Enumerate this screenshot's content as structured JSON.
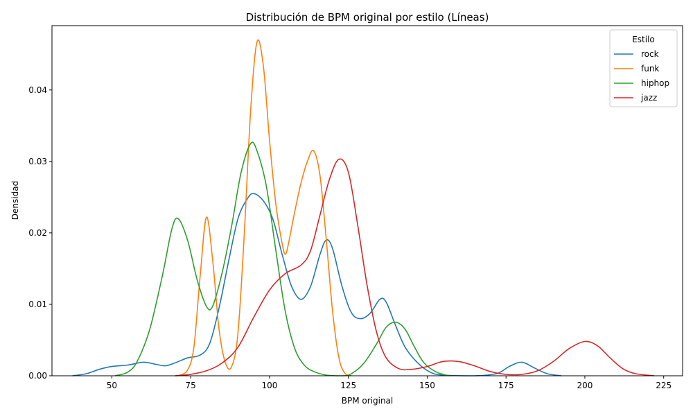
{
  "chart_data": {
    "type": "line",
    "title": "Distribución de BPM original por estilo (Líneas)",
    "xlabel": "BPM original",
    "ylabel": "Densidad",
    "xlim": [
      31,
      231
    ],
    "ylim": [
      0,
      0.049
    ],
    "xticks": [
      50,
      75,
      100,
      125,
      150,
      175,
      200,
      225
    ],
    "yticks": [
      0.0,
      0.01,
      0.02,
      0.03,
      0.04
    ],
    "xtick_labels": [
      "50",
      "75",
      "100",
      "125",
      "150",
      "175",
      "200",
      "225"
    ],
    "ytick_labels": [
      "0.00",
      "0.01",
      "0.02",
      "0.03",
      "0.04"
    ],
    "grid": false,
    "legend": {
      "title": "Estilo",
      "placement": "top-right"
    },
    "series": [
      {
        "name": "rock",
        "color": "#1f77b4",
        "points": [
          [
            37.5,
            0
          ],
          [
            42,
            0.0003
          ],
          [
            46,
            0.0009
          ],
          [
            50,
            0.0013
          ],
          [
            55,
            0.0015
          ],
          [
            60,
            0.0019
          ],
          [
            64,
            0.0016
          ],
          [
            67,
            0.0014
          ],
          [
            70,
            0.0018
          ],
          [
            74,
            0.0025
          ],
          [
            78,
            0.0029
          ],
          [
            81,
            0.0045
          ],
          [
            84,
            0.0095
          ],
          [
            87,
            0.016
          ],
          [
            90,
            0.022
          ],
          [
            93,
            0.0248
          ],
          [
            95,
            0.0255
          ],
          [
            98,
            0.0245
          ],
          [
            101,
            0.022
          ],
          [
            104,
            0.017
          ],
          [
            107,
            0.0125
          ],
          [
            110,
            0.0107
          ],
          [
            113,
            0.0125
          ],
          [
            116,
            0.017
          ],
          [
            118,
            0.019
          ],
          [
            120,
            0.0178
          ],
          [
            123,
            0.0125
          ],
          [
            126,
            0.0088
          ],
          [
            129,
            0.008
          ],
          [
            132,
            0.0088
          ],
          [
            135,
            0.0107
          ],
          [
            137,
            0.0103
          ],
          [
            140,
            0.007
          ],
          [
            143,
            0.004
          ],
          [
            147,
            0.0018
          ],
          [
            151,
            0.0005
          ],
          [
            155,
            0.0001
          ],
          [
            165,
            0
          ],
          [
            172,
            0.0003
          ],
          [
            176,
            0.0013
          ],
          [
            180,
            0.0019
          ],
          [
            184,
            0.0011
          ],
          [
            188,
            0.0003
          ],
          [
            192.5,
            0
          ]
        ]
      },
      {
        "name": "funk",
        "color": "#ff7f0e",
        "points": [
          [
            71,
            0
          ],
          [
            74,
            0.0008
          ],
          [
            76,
            0.004
          ],
          [
            78,
            0.014
          ],
          [
            80,
            0.0222
          ],
          [
            82,
            0.016
          ],
          [
            84,
            0.0065
          ],
          [
            86,
            0.0018
          ],
          [
            88,
            0.0013
          ],
          [
            90,
            0.006
          ],
          [
            92,
            0.02
          ],
          [
            94,
            0.037
          ],
          [
            96,
            0.0467
          ],
          [
            98,
            0.0435
          ],
          [
            100,
            0.033
          ],
          [
            102,
            0.024
          ],
          [
            104,
            0.0185
          ],
          [
            105,
            0.017
          ],
          [
            106,
            0.0185
          ],
          [
            108,
            0.023
          ],
          [
            110,
            0.027
          ],
          [
            112,
            0.03
          ],
          [
            114,
            0.0315
          ],
          [
            116,
            0.028
          ],
          [
            118,
            0.019
          ],
          [
            120,
            0.009
          ],
          [
            122,
            0.0025
          ],
          [
            124,
            0.0003
          ],
          [
            126,
            0
          ]
        ]
      },
      {
        "name": "hiphop",
        "color": "#2ca02c",
        "points": [
          [
            51,
            0
          ],
          [
            55,
            0.0005
          ],
          [
            58,
            0.002
          ],
          [
            62,
            0.0065
          ],
          [
            66,
            0.014
          ],
          [
            69,
            0.0205
          ],
          [
            71,
            0.022
          ],
          [
            74,
            0.019
          ],
          [
            77,
            0.0135
          ],
          [
            80,
            0.0097
          ],
          [
            82,
            0.0098
          ],
          [
            85,
            0.0145
          ],
          [
            88,
            0.021
          ],
          [
            91,
            0.0285
          ],
          [
            94,
            0.0325
          ],
          [
            96,
            0.0315
          ],
          [
            99,
            0.0265
          ],
          [
            102,
            0.0175
          ],
          [
            105,
            0.009
          ],
          [
            108,
            0.0038
          ],
          [
            111,
            0.0015
          ],
          [
            114,
            0.0006
          ],
          [
            118,
            0.0001
          ],
          [
            123,
            0
          ],
          [
            126,
            0.0003
          ],
          [
            130,
            0.0018
          ],
          [
            134,
            0.0045
          ],
          [
            137,
            0.0068
          ],
          [
            140,
            0.0075
          ],
          [
            143,
            0.0065
          ],
          [
            146,
            0.004
          ],
          [
            149,
            0.0018
          ],
          [
            153,
            0.0005
          ],
          [
            157,
            0
          ]
        ]
      },
      {
        "name": "jazz",
        "color": "#d62728",
        "points": [
          [
            70,
            0
          ],
          [
            75,
            0.0002
          ],
          [
            80,
            0.0007
          ],
          [
            85,
            0.0018
          ],
          [
            90,
            0.004
          ],
          [
            95,
            0.0082
          ],
          [
            100,
            0.012
          ],
          [
            105,
            0.0143
          ],
          [
            110,
            0.0155
          ],
          [
            113,
            0.0175
          ],
          [
            116,
            0.0225
          ],
          [
            119,
            0.0275
          ],
          [
            122,
            0.0303
          ],
          [
            125,
            0.0285
          ],
          [
            128,
            0.021
          ],
          [
            131,
            0.0125
          ],
          [
            134,
            0.006
          ],
          [
            137,
            0.0025
          ],
          [
            141,
            0.001
          ],
          [
            145,
            0.0009
          ],
          [
            150,
            0.0013
          ],
          [
            155,
            0.002
          ],
          [
            160,
            0.002
          ],
          [
            165,
            0.0014
          ],
          [
            170,
            0.0006
          ],
          [
            175,
            0.0002
          ],
          [
            180,
            0.0002
          ],
          [
            185,
            0.0007
          ],
          [
            190,
            0.002
          ],
          [
            195,
            0.0038
          ],
          [
            200,
            0.0048
          ],
          [
            204,
            0.0042
          ],
          [
            208,
            0.0025
          ],
          [
            212,
            0.001
          ],
          [
            216,
            0.0003
          ],
          [
            222,
            0
          ]
        ]
      }
    ]
  }
}
